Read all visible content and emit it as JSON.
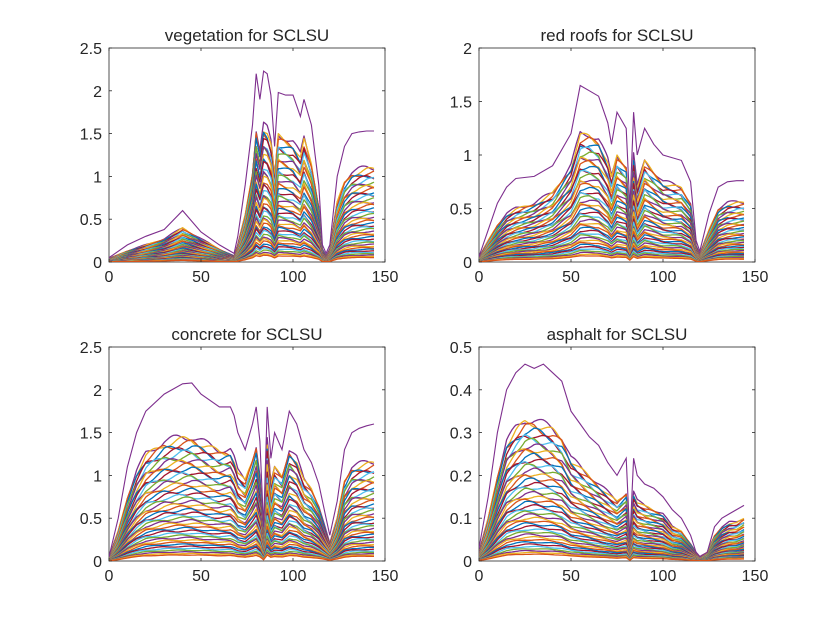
{
  "chart_data": [
    {
      "type": "line",
      "title": "vegetation for SCLSU",
      "xlim": [
        0,
        150
      ],
      "ylim": [
        0,
        2.5
      ],
      "xticks": [
        0,
        50,
        100,
        150
      ],
      "yticks": [
        0,
        0.5,
        1,
        1.5,
        2,
        2.5
      ],
      "ytick_labels": [
        "0",
        "0.5",
        "1",
        "1.5",
        "2",
        "2.5"
      ],
      "grid": false,
      "legend": "none",
      "n_curves": 45,
      "series_colors": [
        "#0072BD",
        "#D95319",
        "#EDB120",
        "#7E2F8E",
        "#77AC30",
        "#4DBEEE",
        "#A2142F"
      ],
      "envelope_color": "#7E2F8E",
      "envelope": {
        "x": [
          0,
          10,
          20,
          30,
          40,
          50,
          60,
          68,
          70,
          74,
          78,
          80,
          82,
          84,
          86,
          88,
          90,
          92,
          96,
          100,
          104,
          106,
          110,
          114,
          116,
          118,
          120,
          124,
          128,
          132,
          136,
          140,
          144
        ],
        "y": [
          0.05,
          0.2,
          0.3,
          0.38,
          0.6,
          0.35,
          0.2,
          0.1,
          0.3,
          0.9,
          1.6,
          2.2,
          1.9,
          2.23,
          2.2,
          1.95,
          1.35,
          1.98,
          1.95,
          1.95,
          1.7,
          1.9,
          1.6,
          0.9,
          0.2,
          0.1,
          0.2,
          1.0,
          1.35,
          1.5,
          1.52,
          1.53,
          1.53
        ]
      },
      "top_curve": {
        "x": [
          0,
          10,
          20,
          30,
          40,
          50,
          60,
          68,
          70,
          74,
          78,
          80,
          82,
          84,
          86,
          88,
          90,
          92,
          96,
          100,
          104,
          106,
          110,
          114,
          116,
          118,
          120,
          124,
          128,
          132,
          136,
          140,
          144
        ],
        "y": [
          0.04,
          0.13,
          0.2,
          0.27,
          0.4,
          0.27,
          0.15,
          0.07,
          0.2,
          0.55,
          1.05,
          1.55,
          1.3,
          1.6,
          1.55,
          1.4,
          1.0,
          1.5,
          1.45,
          1.4,
          1.25,
          1.45,
          1.15,
          0.65,
          0.15,
          0.07,
          0.15,
          0.7,
          0.95,
          1.05,
          1.08,
          1.1,
          1.1
        ]
      }
    },
    {
      "type": "line",
      "title": "red roofs for SCLSU",
      "xlim": [
        0,
        150
      ],
      "ylim": [
        0,
        2
      ],
      "xticks": [
        0,
        50,
        100,
        150
      ],
      "yticks": [
        0,
        0.5,
        1,
        1.5,
        2
      ],
      "ytick_labels": [
        "0",
        "0.5",
        "1",
        "1.5",
        "2"
      ],
      "grid": false,
      "legend": "none",
      "n_curves": 45,
      "series_colors": [
        "#0072BD",
        "#D95319",
        "#EDB120",
        "#7E2F8E",
        "#77AC30",
        "#4DBEEE",
        "#A2142F"
      ],
      "envelope_color": "#7E2F8E",
      "envelope": {
        "x": [
          0,
          5,
          10,
          15,
          20,
          30,
          40,
          50,
          55,
          60,
          65,
          70,
          72,
          75,
          80,
          82,
          84,
          86,
          90,
          95,
          100,
          110,
          115,
          118,
          120,
          125,
          130,
          135,
          140,
          144
        ],
        "y": [
          0.05,
          0.3,
          0.55,
          0.7,
          0.78,
          0.8,
          0.9,
          1.2,
          1.65,
          1.6,
          1.55,
          1.3,
          1.1,
          1.4,
          1.25,
          0.5,
          1.4,
          1.0,
          1.25,
          1.1,
          1.0,
          0.95,
          0.75,
          0.2,
          0.1,
          0.45,
          0.7,
          0.75,
          0.76,
          0.76
        ]
      },
      "top_curve": {
        "x": [
          0,
          5,
          10,
          15,
          20,
          30,
          40,
          50,
          55,
          60,
          65,
          70,
          72,
          75,
          80,
          82,
          84,
          86,
          90,
          95,
          100,
          110,
          115,
          118,
          120,
          125,
          130,
          135,
          140,
          144
        ],
        "y": [
          0.04,
          0.2,
          0.35,
          0.45,
          0.5,
          0.55,
          0.65,
          0.9,
          1.2,
          1.2,
          1.15,
          0.95,
          0.8,
          1.0,
          0.9,
          0.35,
          1.0,
          0.7,
          0.95,
          0.85,
          0.75,
          0.7,
          0.55,
          0.15,
          0.07,
          0.3,
          0.5,
          0.55,
          0.56,
          0.56
        ]
      }
    },
    {
      "type": "line",
      "title": "concrete for SCLSU",
      "xlim": [
        0,
        150
      ],
      "ylim": [
        0,
        2.5
      ],
      "xticks": [
        0,
        50,
        100,
        150
      ],
      "yticks": [
        0,
        0.5,
        1,
        1.5,
        2,
        2.5
      ],
      "ytick_labels": [
        "0",
        "0.5",
        "1",
        "1.5",
        "2",
        "2.5"
      ],
      "grid": false,
      "legend": "none",
      "n_curves": 45,
      "series_colors": [
        "#0072BD",
        "#D95319",
        "#EDB120",
        "#7E2F8E",
        "#77AC30",
        "#4DBEEE",
        "#A2142F"
      ],
      "envelope_color": "#7E2F8E",
      "envelope": {
        "x": [
          0,
          5,
          10,
          15,
          20,
          30,
          40,
          45,
          50,
          60,
          66,
          68,
          70,
          74,
          78,
          80,
          82,
          84,
          86,
          88,
          90,
          94,
          98,
          102,
          106,
          110,
          114,
          118,
          120,
          124,
          128,
          132,
          136,
          140,
          144
        ],
        "y": [
          0.05,
          0.5,
          1.1,
          1.5,
          1.75,
          1.95,
          2.07,
          2.08,
          1.95,
          1.8,
          1.8,
          1.7,
          1.5,
          1.3,
          1.6,
          1.8,
          1.4,
          0.4,
          1.8,
          1.2,
          1.5,
          1.3,
          1.75,
          1.6,
          1.3,
          1.15,
          0.9,
          0.5,
          0.3,
          0.7,
          1.3,
          1.5,
          1.55,
          1.58,
          1.6
        ]
      },
      "top_curve": {
        "x": [
          0,
          5,
          10,
          15,
          20,
          30,
          40,
          45,
          50,
          60,
          66,
          68,
          70,
          74,
          78,
          80,
          82,
          84,
          86,
          88,
          90,
          94,
          98,
          102,
          106,
          110,
          114,
          118,
          120,
          124,
          128,
          132,
          136,
          140,
          144
        ],
        "y": [
          0.04,
          0.35,
          0.75,
          1.05,
          1.25,
          1.4,
          1.45,
          1.45,
          1.4,
          1.3,
          1.3,
          1.2,
          1.05,
          0.95,
          1.2,
          1.35,
          1.0,
          0.3,
          1.4,
          0.9,
          1.1,
          1.0,
          1.3,
          1.2,
          0.95,
          0.85,
          0.65,
          0.35,
          0.2,
          0.5,
          0.95,
          1.1,
          1.13,
          1.15,
          1.16
        ]
      }
    },
    {
      "type": "line",
      "title": "asphalt for SCLSU",
      "xlim": [
        0,
        150
      ],
      "ylim": [
        0,
        0.5
      ],
      "xticks": [
        0,
        50,
        100,
        150
      ],
      "yticks": [
        0,
        0.1,
        0.2,
        0.3,
        0.4,
        0.5
      ],
      "ytick_labels": [
        "0",
        "0.1",
        "0.2",
        "0.3",
        "0.4",
        "0.5"
      ],
      "grid": false,
      "legend": "none",
      "n_curves": 45,
      "series_colors": [
        "#0072BD",
        "#D95319",
        "#EDB120",
        "#7E2F8E",
        "#77AC30",
        "#4DBEEE",
        "#A2142F"
      ],
      "envelope_color": "#7E2F8E",
      "envelope": {
        "x": [
          0,
          5,
          10,
          15,
          20,
          25,
          30,
          35,
          40,
          45,
          50,
          55,
          60,
          65,
          70,
          75,
          80,
          82,
          84,
          86,
          90,
          95,
          100,
          105,
          110,
          115,
          118,
          120,
          124,
          128,
          132,
          136,
          140,
          144
        ],
        "y": [
          0.03,
          0.15,
          0.3,
          0.4,
          0.44,
          0.46,
          0.45,
          0.46,
          0.44,
          0.42,
          0.35,
          0.32,
          0.29,
          0.27,
          0.23,
          0.2,
          0.24,
          0.05,
          0.24,
          0.2,
          0.18,
          0.17,
          0.15,
          0.12,
          0.1,
          0.06,
          0.02,
          0.01,
          0.02,
          0.08,
          0.1,
          0.11,
          0.12,
          0.13
        ]
      },
      "top_curve": {
        "x": [
          0,
          5,
          10,
          15,
          20,
          25,
          30,
          35,
          40,
          45,
          50,
          55,
          60,
          65,
          70,
          75,
          80,
          82,
          84,
          86,
          90,
          95,
          100,
          105,
          110,
          115,
          118,
          120,
          124,
          128,
          132,
          136,
          140,
          144
        ],
        "y": [
          0.02,
          0.1,
          0.2,
          0.28,
          0.31,
          0.33,
          0.33,
          0.32,
          0.31,
          0.29,
          0.24,
          0.22,
          0.2,
          0.18,
          0.16,
          0.14,
          0.16,
          0.04,
          0.16,
          0.14,
          0.13,
          0.12,
          0.11,
          0.08,
          0.07,
          0.04,
          0.02,
          0.01,
          0.02,
          0.06,
          0.08,
          0.09,
          0.09,
          0.1
        ]
      }
    }
  ]
}
